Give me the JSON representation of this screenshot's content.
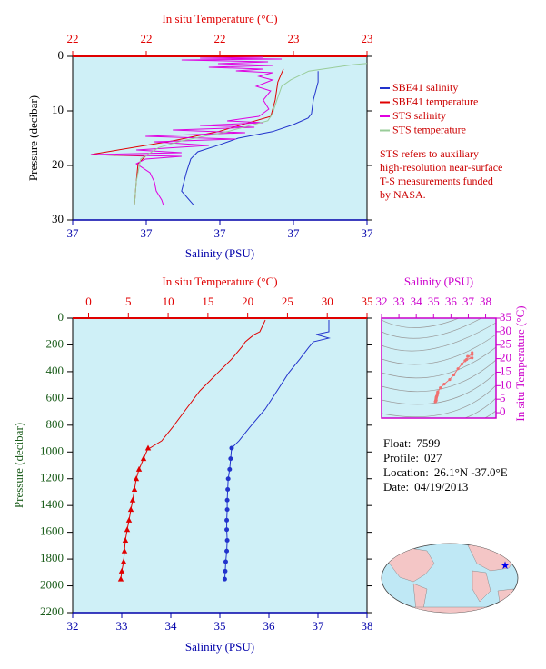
{
  "chart_data": [
    {
      "type": "profile",
      "x2_label": "In situ Temperature (°C)",
      "x_label": "Salinity (PSU)",
      "y_label": "Pressure (decibar)",
      "x_color": "#0000aa",
      "x2_color": "#e00000",
      "y_color": "#000000",
      "background": "#cff0f7",
      "xlim": [
        36.6,
        37.4
      ],
      "xticks": [
        {
          "value": 36.6,
          "label": "37"
        },
        {
          "value": 36.8,
          "label": "37"
        },
        {
          "value": 37.0,
          "label": "37"
        },
        {
          "value": 37.2,
          "label": "37"
        },
        {
          "value": 37.4,
          "label": "37"
        }
      ],
      "x2lim": [
        22,
        23
      ],
      "x2ticks": [
        22,
        {
          "value": 22.25,
          "label": "22"
        },
        {
          "value": 22.5,
          "label": "22"
        },
        {
          "value": 22.75,
          "label": "23"
        },
        23
      ],
      "ylim": [
        0,
        30
      ],
      "yticks": [
        0,
        10,
        20,
        30
      ],
      "legend": "right",
      "series": [
        {
          "name": "SBE41 salinity",
          "color": "#2233cc",
          "axis": "x",
          "pressure": [
            2.7,
            4.7,
            8,
            10.5,
            11.3,
            12.5,
            13.8,
            15,
            16.3,
            17.5,
            18.8,
            21.3,
            24.7,
            27.2
          ],
          "values": [
            37.267,
            37.267,
            37.254,
            37.249,
            37.24,
            37.2,
            37.143,
            37.05,
            36.995,
            36.94,
            36.921,
            36.909,
            36.896,
            36.928
          ]
        },
        {
          "name": "SBE41 temperature",
          "color": "#e00000",
          "axis": "x2",
          "pressure": [
            2.3,
            4.7,
            8,
            11,
            13.8,
            15.5,
            18,
            18.3,
            19.7,
            23,
            27.2
          ],
          "values": [
            22.716,
            22.697,
            22.688,
            22.673,
            22.494,
            22.339,
            22.062,
            22.247,
            22.222,
            22.216,
            22.21
          ]
        },
        {
          "name": "STS salinity",
          "color": "#e000e0",
          "axis": "x",
          "pressure": [
            0.17,
            0.33,
            0.5,
            0.67,
            1.0,
            1.33,
            1.67,
            2.0,
            2.33,
            2.67,
            3.0,
            3.67,
            4.33,
            5.5,
            6.33,
            8.0,
            9.67,
            11.0,
            11.83,
            12.17,
            12.67,
            13.0,
            13.5,
            14.0,
            14.67,
            15.17,
            15.67,
            16.33,
            17.17,
            17.67,
            18.0,
            18.33,
            18.83,
            19.67,
            21.33,
            23.0,
            24.67,
            26.33,
            27.33
          ],
          "values": [
            37.118,
            36.946,
            37.168,
            36.896,
            37.131,
            36.995,
            37.143,
            36.97,
            37.118,
            37.044,
            37.143,
            37.106,
            37.143,
            37.099,
            37.138,
            37.118,
            37.133,
            37.106,
            37.02,
            37.118,
            36.946,
            37.094,
            36.872,
            37.069,
            36.798,
            37.044,
            36.822,
            36.97,
            36.773,
            36.896,
            36.649,
            36.896,
            36.798,
            36.773,
            36.81,
            36.822,
            36.827,
            36.842,
            36.847
          ]
        },
        {
          "name": "STS temperature",
          "color": "#99cc99",
          "axis": "x2",
          "pressure": [
            1.3,
            1.5,
            2.7,
            4.3,
            5.5,
            8,
            10.5,
            11.8,
            13.8,
            15.5,
            16.7,
            18.8,
            21.3,
            23,
            27.2
          ],
          "values": [
            23.0,
            22.957,
            22.802,
            22.741,
            22.71,
            22.694,
            22.679,
            22.663,
            22.525,
            22.37,
            22.293,
            22.231,
            22.222,
            22.216,
            22.21
          ]
        }
      ],
      "note": [
        "STS refers to auxiliary",
        "high-resolution near-surface",
        "T-S measurements funded",
        "by NASA."
      ],
      "note_color": "#cc0000"
    },
    {
      "type": "profile",
      "x2_label": "In situ Temperature (°C)",
      "x_label": "Salinity (PSU)",
      "y_label": "Pressure (decibar)",
      "x_color": "#0000aa",
      "x2_color": "#e00000",
      "y_color": "#1a5c1a",
      "background": "#cff0f7",
      "xlim": [
        32,
        38
      ],
      "xticks": [
        32,
        33,
        34,
        35,
        36,
        37,
        38
      ],
      "x2lim": [
        -2,
        35
      ],
      "x2ticks": [
        0,
        5,
        10,
        15,
        20,
        25,
        30,
        35
      ],
      "ylim": [
        0,
        2200
      ],
      "yticks": [
        0,
        200,
        400,
        600,
        800,
        1000,
        1200,
        1400,
        1600,
        1800,
        2000,
        2200
      ],
      "series": [
        {
          "color": "#2233cc",
          "axis": "x",
          "pressure": [
            14,
            102,
            122,
            149,
            177,
            217,
            306,
            407,
            543,
            679,
            815,
            917,
            971
          ],
          "values": [
            37.222,
            37.222,
            36.963,
            37.222,
            36.907,
            36.815,
            36.63,
            36.407,
            36.167,
            35.926,
            35.611,
            35.389,
            35.241
          ]
        },
        {
          "color": "#2233cc",
          "axis": "x",
          "marker": "circle",
          "pressure": [
            971,
            1050,
            1130,
            1200,
            1280,
            1360,
            1430,
            1510,
            1580,
            1660,
            1740,
            1820,
            1890,
            1950
          ],
          "values": [
            35.24,
            35.22,
            35.2,
            35.17,
            35.16,
            35.15,
            35.15,
            35.14,
            35.14,
            35.15,
            35.14,
            35.12,
            35.11,
            35.1
          ]
        },
        {
          "color": "#e00000",
          "axis": "x2",
          "pressure": [
            14,
            102,
            122,
            149,
            177,
            217,
            306,
            407,
            543,
            679,
            815,
            917,
            971
          ],
          "values": [
            22.21,
            21.52,
            20.84,
            20.27,
            19.7,
            19.24,
            17.98,
            16.27,
            13.99,
            12.27,
            10.56,
            9.19,
            7.71
          ]
        },
        {
          "color": "#e00000",
          "axis": "x2",
          "marker": "triangle",
          "pressure": [
            971,
            1050,
            1130,
            1200,
            1280,
            1360,
            1430,
            1510,
            1580,
            1660,
            1740,
            1820,
            1890,
            1950
          ],
          "values": [
            7.48,
            6.91,
            6.34,
            5.99,
            5.77,
            5.54,
            5.31,
            5.08,
            4.85,
            4.62,
            4.51,
            4.4,
            4.17,
            4.05
          ]
        }
      ]
    },
    {
      "type": "ts",
      "x_label": "Salinity (PSU)",
      "y_label": "In situ Temperature (°C)",
      "axis_color": "#cc00cc",
      "color": "#f07070",
      "background": "#cff0f7",
      "xlim": [
        32,
        38.6
      ],
      "xticks": [
        32,
        33,
        34,
        35,
        36,
        37,
        38
      ],
      "ylim": [
        -2,
        35
      ],
      "yticks": [
        0,
        5,
        10,
        15,
        20,
        25,
        30,
        35
      ]
    }
  ],
  "float_info": [
    {
      "label": "Float:",
      "value": "7599"
    },
    {
      "label": "Profile:",
      "value": "027"
    },
    {
      "label": "Location:",
      "value": "26.1°N  -37.0°E"
    },
    {
      "label": "Date:",
      "value": "04/19/2013"
    }
  ]
}
